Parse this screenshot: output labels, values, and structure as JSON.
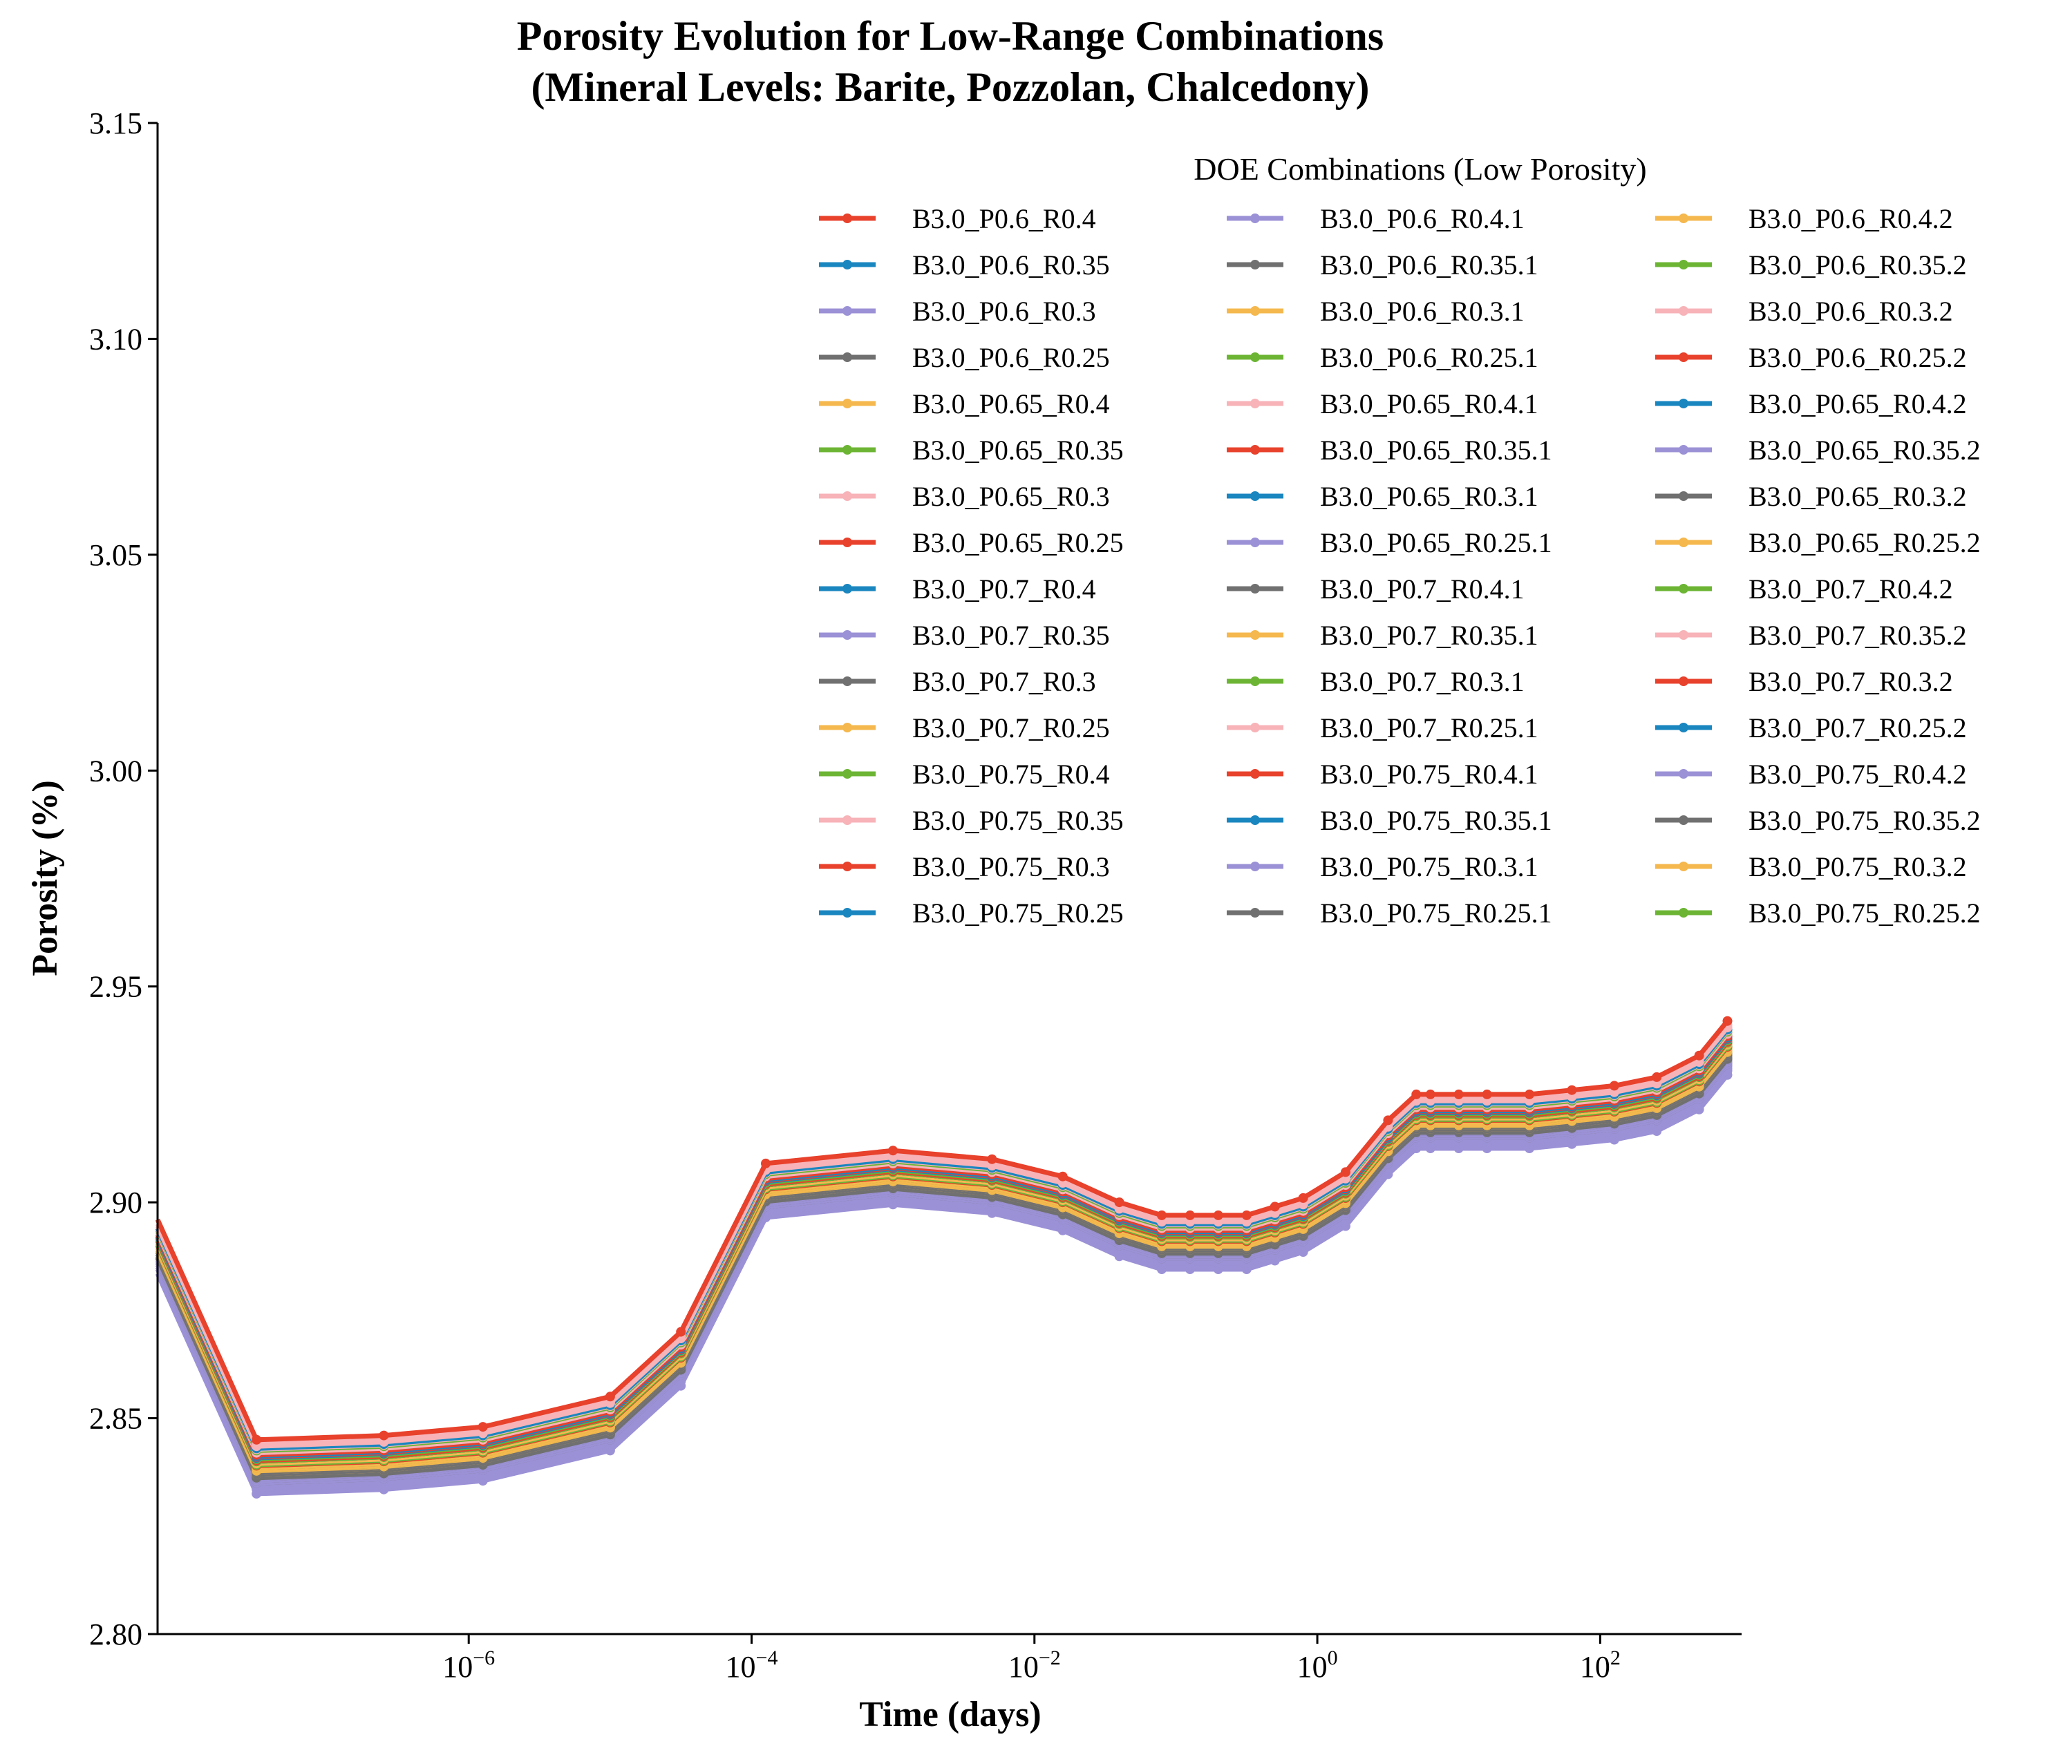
{
  "chart_data": {
    "type": "line",
    "title": "Porosity Evolution for Low-Range Combinations",
    "subtitle": "(Mineral Levels: Barite, Pozzolan, Chalcedony)",
    "xlabel": "Time (days)",
    "ylabel": "Porosity (%)",
    "x_scale": "log",
    "x_ticks": [
      {
        "exp": -6,
        "base": "10",
        "sup": "−6"
      },
      {
        "exp": -4,
        "base": "10",
        "sup": "−4"
      },
      {
        "exp": -2,
        "base": "10",
        "sup": "−2"
      },
      {
        "exp": 0,
        "base": "10",
        "sup": "0"
      },
      {
        "exp": 2,
        "base": "10",
        "sup": "2"
      }
    ],
    "xlim_log10": [
      -8.2,
      3.0
    ],
    "ylim": [
      2.8,
      3.15
    ],
    "y_ticks": [
      "2.80",
      "2.85",
      "2.90",
      "2.95",
      "3.00",
      "3.05",
      "3.10",
      "3.15"
    ],
    "grid": false,
    "legend_title": "DOE Combinations (Low Porosity)",
    "legend_position": "top-right",
    "legend_columns": 3,
    "base_curve": {
      "log10_x": [
        -8.2,
        -7.5,
        -6.6,
        -5.9,
        -5.0,
        -4.5,
        -3.9,
        -3.0,
        -2.3,
        -1.8,
        -1.4,
        -1.1,
        -0.9,
        -0.7,
        -0.5,
        -0.3,
        -0.1,
        0.2,
        0.5,
        0.7,
        0.8,
        1.0,
        1.2,
        1.5,
        1.8,
        2.1,
        2.4,
        2.7,
        2.9
      ],
      "y": [
        2.893,
        2.842,
        2.843,
        2.845,
        2.852,
        2.867,
        2.906,
        2.909,
        2.907,
        2.903,
        2.897,
        2.894,
        2.894,
        2.894,
        2.894,
        2.896,
        2.898,
        2.904,
        2.916,
        2.922,
        2.922,
        2.922,
        2.922,
        2.922,
        2.923,
        2.924,
        2.926,
        2.931,
        2.939
      ]
    },
    "series": [
      {
        "name": "B3.0_P0.6_R0.4",
        "color": "#E8412C",
        "offset": 0.003
      },
      {
        "name": "B3.0_P0.6_R0.35",
        "color": "#1A86C0",
        "offset": -0.001
      },
      {
        "name": "B3.0_P0.6_R0.3",
        "color": "#9B91D6",
        "offset": -0.0095
      },
      {
        "name": "B3.0_P0.6_R0.25",
        "color": "#707070",
        "offset": -0.006
      },
      {
        "name": "B3.0_P0.65_R0.4",
        "color": "#F5B84E",
        "offset": -0.003
      },
      {
        "name": "B3.0_P0.65_R0.35",
        "color": "#6CB534",
        "offset": -0.004
      },
      {
        "name": "B3.0_P0.65_R0.3",
        "color": "#F7B3B8",
        "offset": 0.001
      },
      {
        "name": "B3.0_P0.65_R0.25",
        "color": "#E8412C",
        "offset": -0.002
      },
      {
        "name": "B3.0_P0.7_R0.4",
        "color": "#1A86C0",
        "offset": 0.0
      },
      {
        "name": "B3.0_P0.7_R0.35",
        "color": "#9B91D6",
        "offset": -0.008
      },
      {
        "name": "B3.0_P0.7_R0.3",
        "color": "#707070",
        "offset": -0.007
      },
      {
        "name": "B3.0_P0.7_R0.25",
        "color": "#F5B84E",
        "offset": -0.005
      },
      {
        "name": "B3.0_P0.75_R0.4",
        "color": "#6CB534",
        "offset": -0.003
      },
      {
        "name": "B3.0_P0.75_R0.35",
        "color": "#F7B3B8",
        "offset": 0.002
      },
      {
        "name": "B3.0_P0.75_R0.3",
        "color": "#E8412C",
        "offset": -0.001
      },
      {
        "name": "B3.0_P0.75_R0.25",
        "color": "#1A86C0",
        "offset": -0.002
      },
      {
        "name": "B3.0_P0.6_R0.4.1",
        "color": "#9B91D6",
        "offset": -0.0085
      },
      {
        "name": "B3.0_P0.6_R0.35.1",
        "color": "#707070",
        "offset": -0.005
      },
      {
        "name": "B3.0_P0.6_R0.3.1",
        "color": "#F5B84E",
        "offset": -0.004
      },
      {
        "name": "B3.0_P0.6_R0.25.1",
        "color": "#6CB534",
        "offset": -0.002
      },
      {
        "name": "B3.0_P0.65_R0.4.1",
        "color": "#F7B3B8",
        "offset": 0.0
      },
      {
        "name": "B3.0_P0.65_R0.35.1",
        "color": "#E8412C",
        "offset": -0.003
      },
      {
        "name": "B3.0_P0.65_R0.3.1",
        "color": "#1A86C0",
        "offset": 0.001
      },
      {
        "name": "B3.0_P0.65_R0.25.1",
        "color": "#9B91D6",
        "offset": -0.007
      },
      {
        "name": "B3.0_P0.7_R0.4.1",
        "color": "#707070",
        "offset": -0.0065
      },
      {
        "name": "B3.0_P0.7_R0.35.1",
        "color": "#F5B84E",
        "offset": -0.0045
      },
      {
        "name": "B3.0_P0.7_R0.3.1",
        "color": "#6CB534",
        "offset": -0.0035
      },
      {
        "name": "B3.0_P0.7_R0.25.1",
        "color": "#F7B3B8",
        "offset": 0.0005
      },
      {
        "name": "B3.0_P0.75_R0.4.1",
        "color": "#E8412C",
        "offset": -0.0015
      },
      {
        "name": "B3.0_P0.75_R0.35.1",
        "color": "#1A86C0",
        "offset": -0.0025
      },
      {
        "name": "B3.0_P0.75_R0.3.1",
        "color": "#9B91D6",
        "offset": -0.0075
      },
      {
        "name": "B3.0_P0.75_R0.25.1",
        "color": "#707070",
        "offset": -0.0055
      },
      {
        "name": "B3.0_P0.6_R0.4.2",
        "color": "#F5B84E",
        "offset": -0.0025
      },
      {
        "name": "B3.0_P0.6_R0.35.2",
        "color": "#6CB534",
        "offset": -0.0015
      },
      {
        "name": "B3.0_P0.6_R0.3.2",
        "color": "#F7B3B8",
        "offset": 0.0015
      },
      {
        "name": "B3.0_P0.6_R0.25.2",
        "color": "#E8412C",
        "offset": -0.0005
      },
      {
        "name": "B3.0_P0.65_R0.4.2",
        "color": "#1A86C0",
        "offset": -0.0012
      },
      {
        "name": "B3.0_P0.65_R0.35.2",
        "color": "#9B91D6",
        "offset": -0.006
      },
      {
        "name": "B3.0_P0.65_R0.3.2",
        "color": "#707070",
        "offset": -0.0045
      },
      {
        "name": "B3.0_P0.65_R0.25.2",
        "color": "#F5B84E",
        "offset": -0.0035
      },
      {
        "name": "B3.0_P0.7_R0.4.2",
        "color": "#6CB534",
        "offset": -0.0028
      },
      {
        "name": "B3.0_P0.7_R0.35.2",
        "color": "#F7B3B8",
        "offset": 0.0008
      },
      {
        "name": "B3.0_P0.7_R0.3.2",
        "color": "#E8412C",
        "offset": -0.0018
      },
      {
        "name": "B3.0_P0.7_R0.25.2",
        "color": "#1A86C0",
        "offset": -0.0008
      },
      {
        "name": "B3.0_P0.75_R0.4.2",
        "color": "#9B91D6",
        "offset": -0.0065
      },
      {
        "name": "B3.0_P0.75_R0.35.2",
        "color": "#707070",
        "offset": -0.0058
      },
      {
        "name": "B3.0_P0.75_R0.3.2",
        "color": "#F5B84E",
        "offset": -0.0042
      },
      {
        "name": "B3.0_P0.75_R0.25.2",
        "color": "#6CB534",
        "offset": 0.0005
      }
    ]
  }
}
